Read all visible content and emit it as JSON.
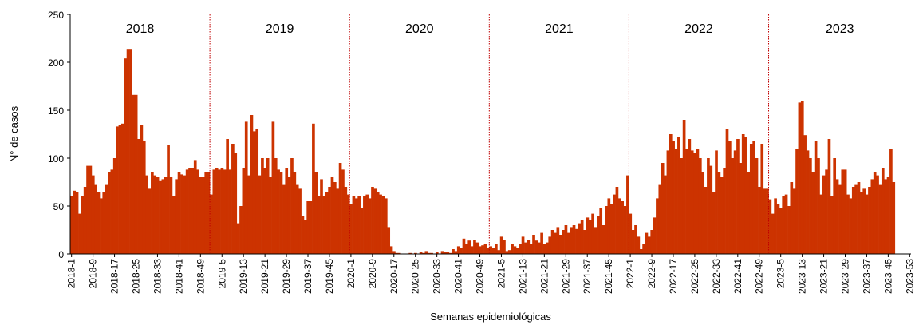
{
  "chart_data": {
    "type": "bar",
    "y_label": "N° de casos",
    "x_label": "Semanas epidemiológicas",
    "annotations": [
      "2018",
      "2019",
      "2020",
      "2021",
      "2022",
      "2023"
    ],
    "color": "#cc3300",
    "ylim": [
      0,
      250
    ],
    "yticks": [
      0,
      50,
      100,
      150,
      200,
      250
    ],
    "grid": false,
    "categories": [
      "2018-1",
      null,
      null,
      null,
      null,
      null,
      null,
      null,
      "2018-9",
      null,
      null,
      null,
      null,
      null,
      null,
      null,
      "2018-17",
      null,
      null,
      null,
      null,
      null,
      null,
      null,
      "2018-25",
      null,
      null,
      null,
      null,
      null,
      null,
      null,
      "2018-33",
      null,
      null,
      null,
      null,
      null,
      null,
      null,
      "2018-41",
      null,
      null,
      null,
      null,
      null,
      null,
      null,
      "2018-49",
      null,
      null,
      null,
      null,
      null,
      null,
      null,
      "2019-5",
      null,
      null,
      null,
      null,
      null,
      null,
      null,
      "2019-13",
      null,
      null,
      null,
      null,
      null,
      null,
      null,
      "2019-21",
      null,
      null,
      null,
      null,
      null,
      null,
      null,
      "2019-29",
      null,
      null,
      null,
      null,
      null,
      null,
      null,
      "2019-37",
      null,
      null,
      null,
      null,
      null,
      null,
      null,
      "2019-45",
      null,
      null,
      null,
      null,
      null,
      null,
      null,
      "2020-1",
      null,
      null,
      null,
      null,
      null,
      null,
      null,
      "2020-9",
      null,
      null,
      null,
      null,
      null,
      null,
      null,
      "2020-17",
      null,
      null,
      null,
      null,
      null,
      null,
      null,
      "2020-25",
      null,
      null,
      null,
      null,
      null,
      null,
      null,
      "2020-33",
      null,
      null,
      null,
      null,
      null,
      null,
      null,
      "2020-41",
      null,
      null,
      null,
      null,
      null,
      null,
      null,
      "2020-49",
      null,
      null,
      null,
      null,
      null,
      null,
      null,
      "2021-5",
      null,
      null,
      null,
      null,
      null,
      null,
      null,
      "2021-13",
      null,
      null,
      null,
      null,
      null,
      null,
      null,
      "2021-21",
      null,
      null,
      null,
      null,
      null,
      null,
      null,
      "2021-29",
      null,
      null,
      null,
      null,
      null,
      null,
      null,
      "2021-37",
      null,
      null,
      null,
      null,
      null,
      null,
      null,
      "2021-45",
      null,
      null,
      null,
      null,
      null,
      null,
      null,
      "2022-1",
      null,
      null,
      null,
      null,
      null,
      null,
      null,
      "2022-9",
      null,
      null,
      null,
      null,
      null,
      null,
      null,
      "2022-17",
      null,
      null,
      null,
      null,
      null,
      null,
      null,
      "2022-25",
      null,
      null,
      null,
      null,
      null,
      null,
      null,
      "2022-33",
      null,
      null,
      null,
      null,
      null,
      null,
      null,
      "2022-41",
      null,
      null,
      null,
      null,
      null,
      null,
      null,
      "2022-49",
      null,
      null,
      null,
      null,
      null,
      null,
      null,
      "2023-5",
      null,
      null,
      null,
      null,
      null,
      null,
      null,
      "2023-13",
      null,
      null,
      null,
      null,
      null,
      null,
      null,
      "2023-21",
      null,
      null,
      null,
      null,
      null,
      null,
      null,
      "2023-29",
      null,
      null,
      null,
      null,
      null,
      null,
      null,
      "2023-37",
      null,
      null,
      null,
      null,
      null,
      null,
      null,
      "2023-45",
      null,
      null,
      null,
      null,
      null,
      null,
      null,
      "2023-53"
    ],
    "values": [
      60,
      66,
      65,
      42,
      60,
      70,
      92,
      92,
      82,
      72,
      65,
      58,
      65,
      72,
      85,
      88,
      100,
      133,
      135,
      136,
      204,
      214,
      214,
      166,
      166,
      120,
      135,
      118,
      82,
      68,
      85,
      82,
      80,
      76,
      78,
      80,
      114,
      80,
      60,
      78,
      85,
      83,
      82,
      88,
      90,
      90,
      98,
      88,
      80,
      80,
      85,
      85,
      62,
      88,
      90,
      88,
      90,
      88,
      120,
      88,
      115,
      105,
      32,
      50,
      90,
      138,
      82,
      145,
      128,
      130,
      82,
      100,
      90,
      100,
      80,
      138,
      100,
      88,
      85,
      72,
      90,
      80,
      100,
      85,
      72,
      68,
      40,
      35,
      55,
      55,
      136,
      85,
      60,
      78,
      60,
      65,
      70,
      80,
      75,
      68,
      95,
      88,
      70,
      62,
      52,
      60,
      58,
      60,
      48,
      60,
      62,
      58,
      70,
      68,
      65,
      62,
      60,
      58,
      28,
      8,
      3,
      1,
      1,
      0,
      0,
      0,
      1,
      0,
      1,
      0,
      2,
      1,
      3,
      1,
      1,
      0,
      2,
      0,
      3,
      2,
      2,
      1,
      5,
      3,
      8,
      6,
      16,
      10,
      14,
      8,
      15,
      12,
      8,
      9,
      10,
      6,
      8,
      6,
      10,
      4,
      18,
      15,
      3,
      4,
      10,
      8,
      6,
      10,
      18,
      12,
      15,
      10,
      20,
      14,
      12,
      22,
      10,
      12,
      18,
      25,
      22,
      28,
      20,
      25,
      30,
      22,
      28,
      30,
      26,
      32,
      35,
      25,
      38,
      35,
      42,
      28,
      40,
      48,
      30,
      50,
      58,
      52,
      62,
      70,
      58,
      55,
      50,
      82,
      42,
      25,
      30,
      18,
      5,
      10,
      22,
      18,
      25,
      38,
      58,
      72,
      95,
      82,
      108,
      125,
      118,
      110,
      122,
      100,
      140,
      110,
      120,
      108,
      105,
      110,
      100,
      85,
      70,
      100,
      92,
      65,
      108,
      85,
      80,
      90,
      130,
      118,
      100,
      108,
      120,
      95,
      125,
      122,
      85,
      115,
      118,
      100,
      70,
      115,
      68,
      68,
      57,
      42,
      58,
      52,
      48,
      60,
      62,
      50,
      75,
      68,
      110,
      158,
      160,
      124,
      108,
      100,
      85,
      118,
      100,
      62,
      82,
      88,
      120,
      60,
      100,
      78,
      72,
      88,
      88,
      62,
      58,
      70,
      72,
      75,
      65,
      68,
      62,
      70,
      78,
      85,
      82,
      72,
      90,
      78,
      80,
      110,
      75,
      null,
      null,
      null,
      null,
      null,
      null
    ]
  }
}
